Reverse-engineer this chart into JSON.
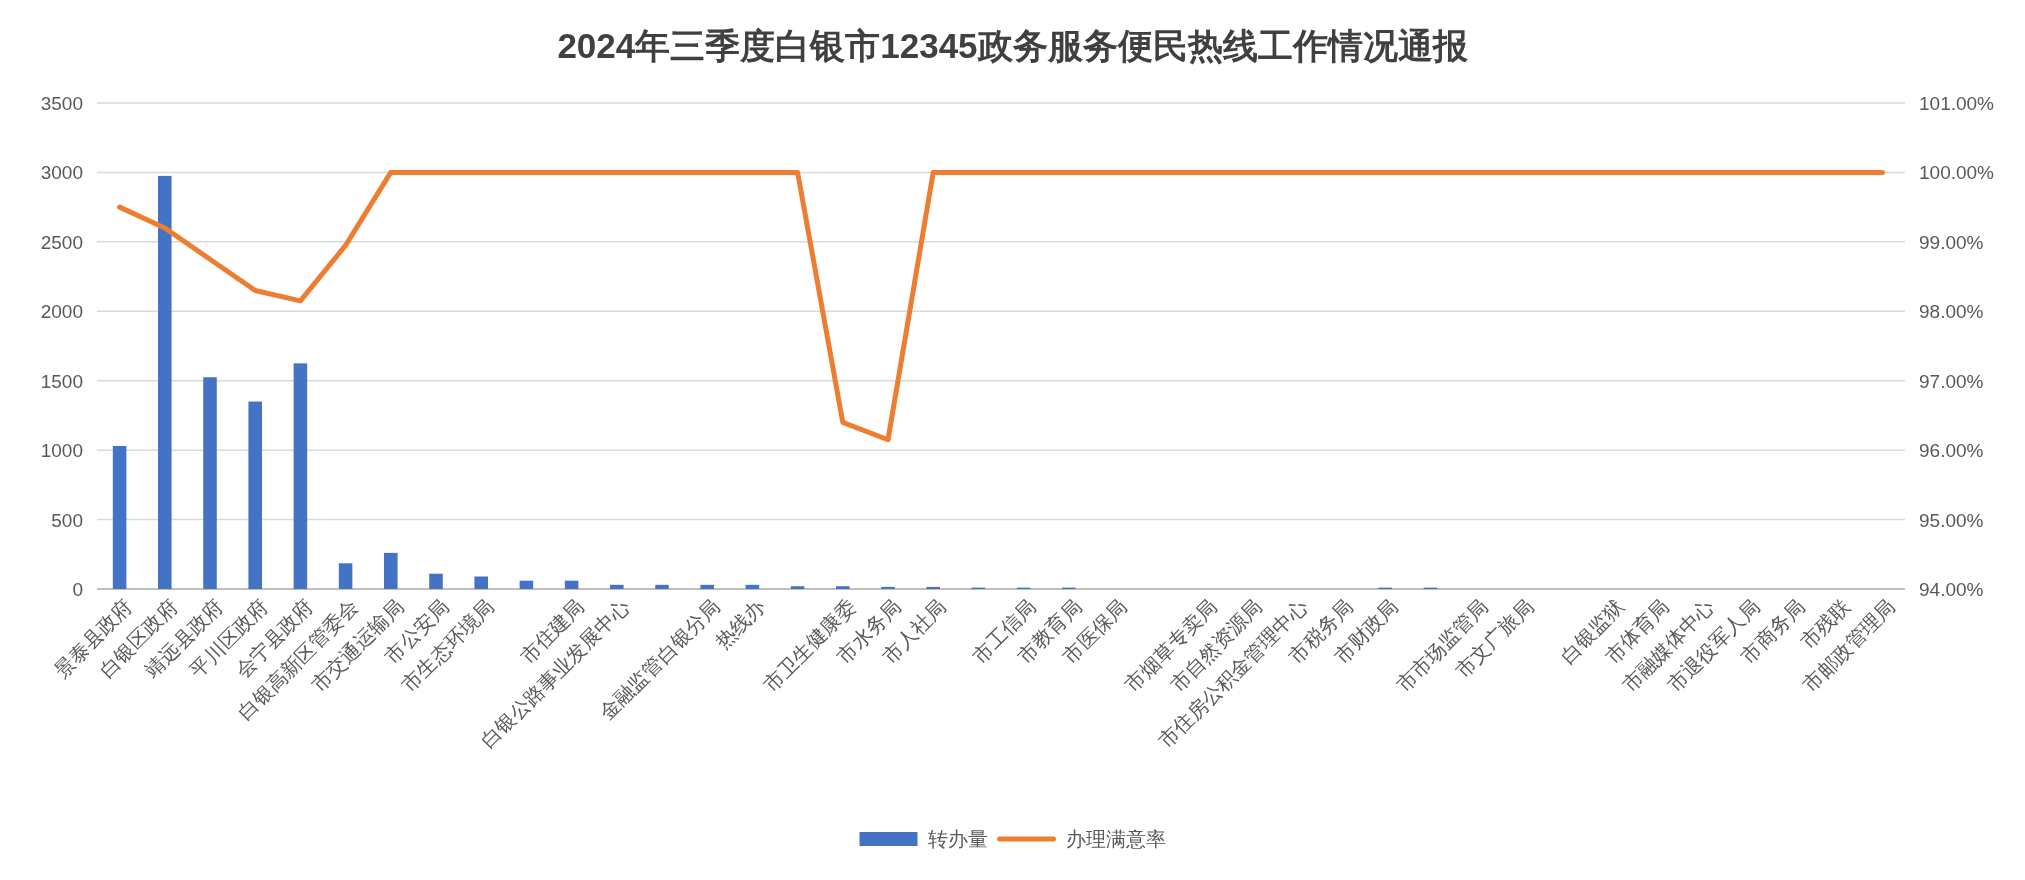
{
  "chart_data": {
    "type": "bar",
    "title": "2024年三季度白银市12345政务服务便民热线工作情况通报",
    "categories": [
      "景泰县政府",
      "白银区政府",
      "靖远县政府",
      "平川区政府",
      "会宁县政府",
      "白银高新区管委会",
      "市交通运输局",
      "市公安局",
      "市生态环境局",
      null,
      "市住建局",
      "白银公路事业发展中心",
      null,
      "金融监管白银分局",
      "热线办",
      null,
      "市卫生健康委",
      "市水务局",
      "市人社局",
      null,
      "市工信局",
      "市教育局",
      "市医保局",
      null,
      "市烟草专卖局",
      "市自然资源局",
      "市住房公积金管理中心",
      "市税务局",
      "市财政局",
      null,
      "市市场监管局",
      "市文广旅局",
      null,
      "白银监狱",
      "市体育局",
      "市融媒体中心",
      "市退役军人局",
      "市商务局",
      "市残联",
      "市邮政管理局"
    ],
    "series": [
      {
        "name": "转办量",
        "color": "#4472c4",
        "values": [
          1030,
          2975,
          1525,
          1350,
          1625,
          185,
          260,
          110,
          90,
          60,
          60,
          30,
          30,
          30,
          30,
          20,
          20,
          15,
          15,
          10,
          10,
          10,
          0,
          0,
          0,
          0,
          0,
          0,
          10,
          10,
          0,
          0,
          0,
          0,
          0,
          0,
          0,
          0,
          0,
          0
        ]
      },
      {
        "name": "办理满意率",
        "type": "line",
        "axis": "y2",
        "color": "#ed7d31",
        "values": [
          99.5,
          99.2,
          98.75,
          98.3,
          98.15,
          98.95,
          100,
          100,
          100,
          100,
          100,
          100,
          100,
          100,
          100,
          100,
          96.4,
          96.15,
          100,
          100,
          100,
          100,
          100,
          100,
          100,
          100,
          100,
          100,
          100,
          100,
          100,
          100,
          100,
          100,
          100,
          100,
          100,
          100,
          100,
          100
        ]
      }
    ],
    "ylim": [
      0,
      3500
    ],
    "yticks": [
      0,
      500,
      1000,
      1500,
      2000,
      2500,
      3000,
      3500
    ],
    "y2lim": [
      94,
      101
    ],
    "y2ticks": [
      {
        "value": 94,
        "label": "94.00%"
      },
      {
        "value": 95,
        "label": "95.00%"
      },
      {
        "value": 96,
        "label": "96.00%"
      },
      {
        "value": 97,
        "label": "97.00%"
      },
      {
        "value": 98,
        "label": "98.00%"
      },
      {
        "value": 99,
        "label": "99.00%"
      },
      {
        "value": 100,
        "label": "100.00%"
      },
      {
        "value": 101,
        "label": "101.00%"
      }
    ],
    "grid": "y",
    "legend": "bottom"
  }
}
